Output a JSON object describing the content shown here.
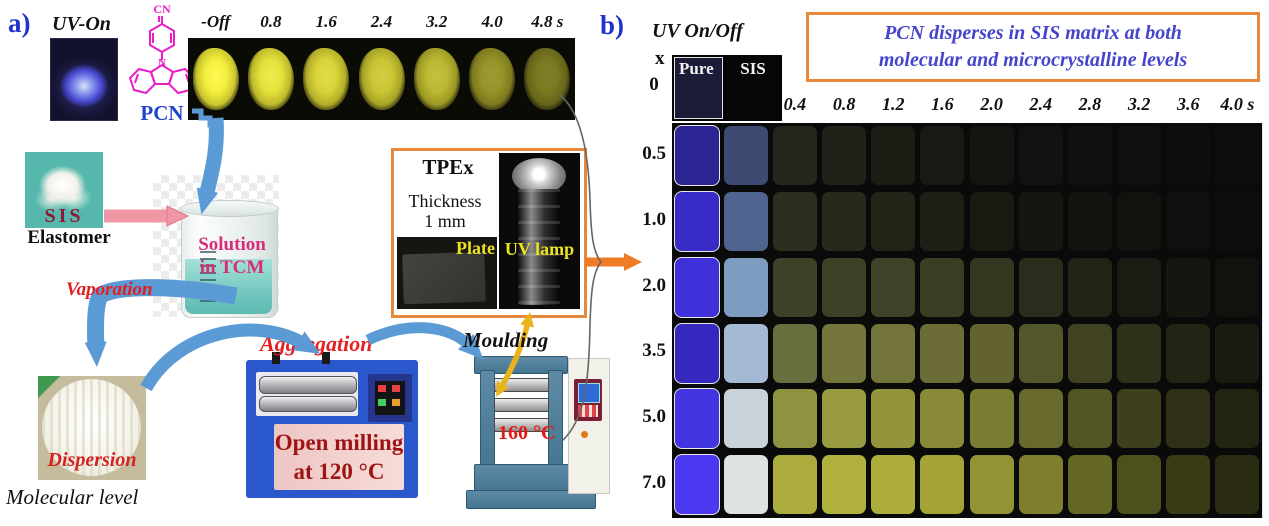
{
  "panel_a": {
    "label": "a)",
    "uv_on_label": "UV-On",
    "molecule": {
      "cn": "CN",
      "n": "N",
      "name": "PCN",
      "color": "#ea1ec8"
    },
    "time_labels": [
      "-Off",
      "0.8",
      "1.6",
      "2.4",
      "3.2",
      "4.0",
      "4.8 s"
    ],
    "strip_glow": [
      1.0,
      0.94,
      0.88,
      0.82,
      0.76,
      0.6,
      0.48
    ],
    "sis_photo_label": "SIS",
    "elastomer_label": "Elastomer",
    "solution_line1": "Solution",
    "solution_line2": "in TCM",
    "vaporation_label": "Vaporation",
    "dispersion_label": "Dispersion",
    "molecular_level_label": "Molecular level",
    "aggregation_label": "Aggregation",
    "open_milling_line1": "Open milling",
    "open_milling_line2": "at 120 °C",
    "moulding_label": "Moulding",
    "press_temp_label": "160 °C",
    "tpex": {
      "title": "TPEx",
      "thickness_line1": "Thickness",
      "thickness_line2": "1 mm",
      "plate_label": "Plate",
      "uv_lamp_label": "UV lamp"
    }
  },
  "panel_b": {
    "label": "b)",
    "uv_onoff_label": "UV On/Off",
    "x_axis_label": "x",
    "note_line1": "PCN disperses in SIS matrix at both",
    "note_line2": "molecular and microcrystalline levels",
    "col_headers": [
      "Pure",
      "SIS"
    ],
    "time_labels": [
      "0.4",
      "0.8",
      "1.2",
      "1.6",
      "2.0",
      "2.4",
      "2.8",
      "3.2",
      "3.6",
      "4.0"
    ],
    "time_unit": "s",
    "row0": {
      "x": "0",
      "pure_color": "#1c1c38",
      "sis_color": "#070707"
    },
    "rows": [
      {
        "x": "0.5",
        "cells": [
          "#2c2492",
          "#3d4a72",
          "#23261b",
          "#1f2218",
          "#1b1d15",
          "#171913",
          "#141511",
          "#121310",
          "#10110f",
          "#0f100e",
          "#0e0e0d",
          "#0d0d0c"
        ]
      },
      {
        "x": "1.0",
        "cells": [
          "#392cc6",
          "#506490",
          "#2c2e1d",
          "#27291b",
          "#222418",
          "#1d1f15",
          "#191a12",
          "#151610",
          "#13140f",
          "#11120e",
          "#0f100d",
          "#0e0e0c"
        ]
      },
      {
        "x": "2.0",
        "cells": [
          "#4030da",
          "#7e9cc0",
          "#3c4128",
          "#3d4226",
          "#3e4226",
          "#3a3e23",
          "#33371f",
          "#2a2d1b",
          "#212316",
          "#1a1b12",
          "#15160f",
          "#11120d"
        ]
      },
      {
        "x": "3.5",
        "cells": [
          "#3628be",
          "#a4bad4",
          "#696e3e",
          "#74763c",
          "#72743a",
          "#6c6d36",
          "#626331",
          "#53552b",
          "#404222",
          "#2f311b",
          "#232414",
          "#1a1b10"
        ]
      },
      {
        "x": "5.0",
        "cells": [
          "#4334e2",
          "#c9d2d8",
          "#8f9340",
          "#989a40",
          "#93943c",
          "#898a38",
          "#7b7c33",
          "#68692c",
          "#525424",
          "#3e401d",
          "#2e2f16",
          "#222310"
        ]
      },
      {
        "x": "7.0",
        "cells": [
          "#4b38f0",
          "#dde3e0",
          "#abac3d",
          "#b1b13e",
          "#adad3c",
          "#a3a338",
          "#939334",
          "#7e7f2d",
          "#656724",
          "#4d4f1d",
          "#393a16",
          "#2a2b11"
        ]
      }
    ]
  },
  "colors": {
    "panel_label_blue": "#2233cc",
    "note_text_blue": "#4444cc",
    "box_border_orange": "#e8883a",
    "process_red": "#e02020",
    "solution_pink": "#d92b7a",
    "glow_yellow": "#f3ee3e",
    "arrow_blue": "#5b9bd5",
    "arrow_pink": "#ef97a4",
    "arrow_gold": "#eab31c",
    "arrow_orange": "#f07b25"
  }
}
